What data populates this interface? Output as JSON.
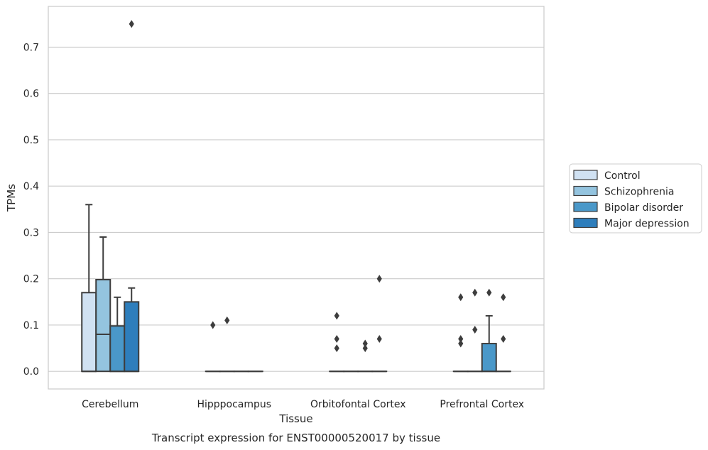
{
  "chart_data": {
    "type": "box",
    "xlabel": "Tissue",
    "ylabel": "TPMs",
    "caption": "Transcript expression for ENST00000520017 by tissue",
    "ylim": [
      -0.038,
      0.788
    ],
    "yticks": [
      "0.0",
      "0.1",
      "0.2",
      "0.3",
      "0.4",
      "0.5",
      "0.6",
      "0.7"
    ],
    "yticks_values": [
      0.0,
      0.1,
      0.2,
      0.3,
      0.4,
      0.5,
      0.6,
      0.7
    ],
    "grid": true,
    "legend_position": "right",
    "categories": [
      "Cerebellum",
      "Hipppocampus",
      "Orbitofontal Cortex",
      "Prefrontal Cortex"
    ],
    "series": [
      {
        "name": "Control",
        "color": "#d0e1f2",
        "boxes": [
          {
            "q1": 0.0,
            "median": 0.0,
            "q3": 0.17,
            "whislo": 0.0,
            "whishi": 0.36,
            "fliers": []
          },
          {
            "q1": 0.0,
            "median": 0.0,
            "q3": 0.0,
            "whislo": 0.0,
            "whishi": 0.0,
            "fliers": [
              0.1
            ]
          },
          {
            "q1": 0.0,
            "median": 0.0,
            "q3": 0.0,
            "whislo": 0.0,
            "whishi": 0.0,
            "fliers": [
              0.12,
              0.07,
              0.05
            ]
          },
          {
            "q1": 0.0,
            "median": 0.0,
            "q3": 0.0,
            "whislo": 0.0,
            "whishi": 0.0,
            "fliers": [
              0.16,
              0.07,
              0.06
            ]
          }
        ]
      },
      {
        "name": "Schizophrenia",
        "color": "#94c4df",
        "boxes": [
          {
            "q1": 0.0,
            "median": 0.08,
            "q3": 0.198,
            "whislo": 0.0,
            "whishi": 0.29,
            "fliers": []
          },
          {
            "q1": 0.0,
            "median": 0.0,
            "q3": 0.0,
            "whislo": 0.0,
            "whishi": 0.0,
            "fliers": [
              0.11
            ]
          },
          {
            "q1": 0.0,
            "median": 0.0,
            "q3": 0.0,
            "whislo": 0.0,
            "whishi": 0.0,
            "fliers": []
          },
          {
            "q1": 0.0,
            "median": 0.0,
            "q3": 0.0,
            "whislo": 0.0,
            "whishi": 0.0,
            "fliers": [
              0.17,
              0.09
            ]
          }
        ]
      },
      {
        "name": "Bipolar disorder",
        "color": "#4a98c9",
        "boxes": [
          {
            "q1": 0.0,
            "median": 0.0,
            "q3": 0.098,
            "whislo": 0.0,
            "whishi": 0.16,
            "fliers": []
          },
          {
            "q1": 0.0,
            "median": 0.0,
            "q3": 0.0,
            "whislo": 0.0,
            "whishi": 0.0,
            "fliers": []
          },
          {
            "q1": 0.0,
            "median": 0.0,
            "q3": 0.0,
            "whislo": 0.0,
            "whishi": 0.0,
            "fliers": [
              0.06,
              0.05
            ]
          },
          {
            "q1": 0.0,
            "median": 0.0,
            "q3": 0.06,
            "whislo": 0.0,
            "whishi": 0.12,
            "fliers": [
              0.17
            ]
          }
        ]
      },
      {
        "name": "Major depression",
        "color": "#2e7ebc",
        "boxes": [
          {
            "q1": 0.0,
            "median": 0.0,
            "q3": 0.15,
            "whislo": 0.0,
            "whishi": 0.18,
            "fliers": [
              0.75
            ]
          },
          {
            "q1": 0.0,
            "median": 0.0,
            "q3": 0.0,
            "whislo": 0.0,
            "whishi": 0.0,
            "fliers": []
          },
          {
            "q1": 0.0,
            "median": 0.0,
            "q3": 0.0,
            "whislo": 0.0,
            "whishi": 0.0,
            "fliers": [
              0.2,
              0.07
            ]
          },
          {
            "q1": 0.0,
            "median": 0.0,
            "q3": 0.0,
            "whislo": 0.0,
            "whishi": 0.0,
            "fliers": [
              0.16,
              0.07
            ]
          }
        ]
      }
    ]
  }
}
